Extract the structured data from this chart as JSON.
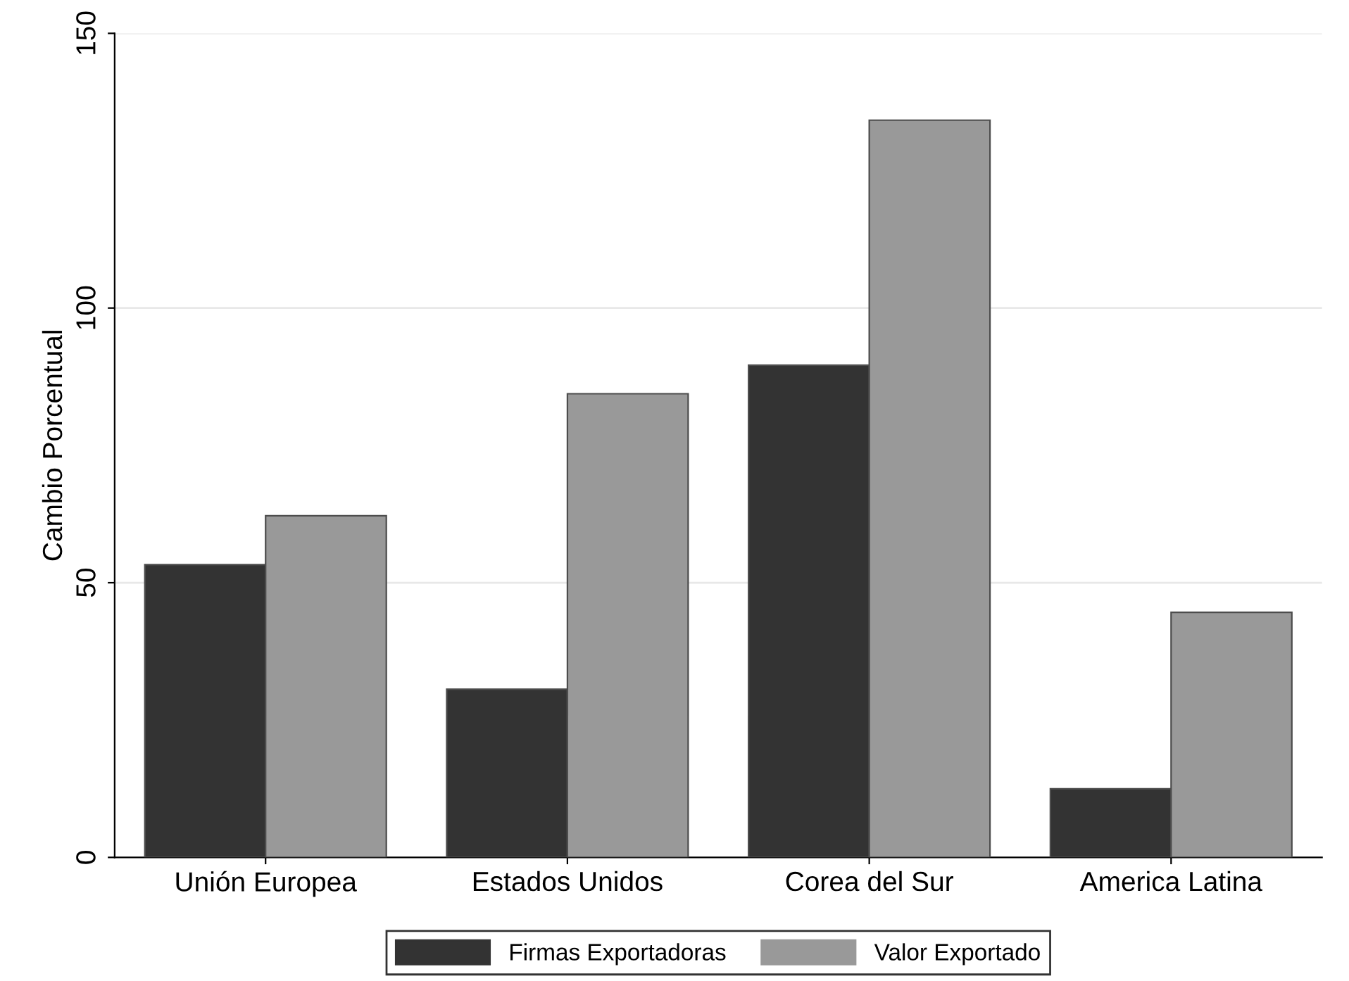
{
  "chart_data": {
    "type": "bar",
    "ylabel": "Cambio Porcentual",
    "categories": [
      "Unión Europea",
      "Estados Unidos",
      "Corea del Sur",
      "America Latina"
    ],
    "series": [
      {
        "name": "Firmas Exportadoras",
        "color": "#333333",
        "values": [
          53.3,
          30.6,
          89.6,
          12.5
        ]
      },
      {
        "name": "Valor Exportado",
        "color": "#999999",
        "values": [
          62.2,
          84.4,
          134.2,
          44.6
        ]
      }
    ],
    "ylim": [
      0,
      150
    ],
    "yticks": [
      0,
      50,
      100,
      150
    ],
    "grid": "y",
    "legend": "bottom"
  }
}
